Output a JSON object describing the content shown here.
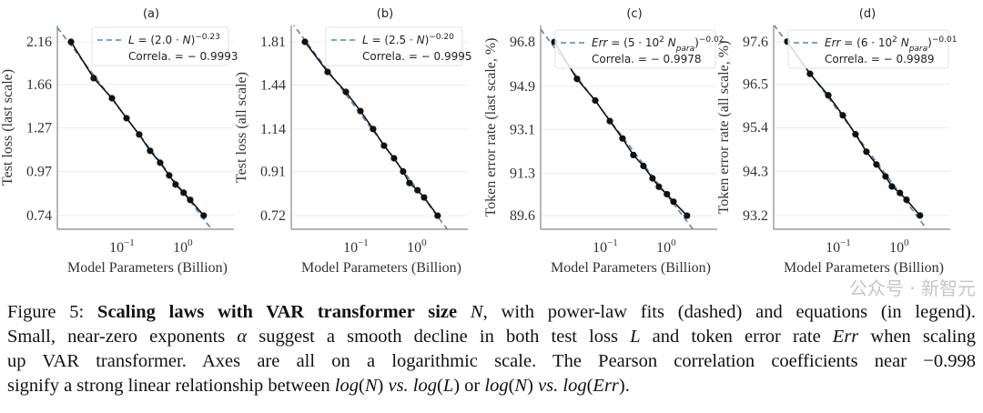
{
  "colors": {
    "fit": "#4f87b8",
    "data": "#111111",
    "grid": "#ececec",
    "axis": "#888888"
  },
  "chart_data": [
    {
      "type": "line",
      "title": "(a)",
      "xlabel": "Model Parameters (Billion)",
      "ylabel": "Test loss (last scale)",
      "xscale": "log",
      "yscale": "log",
      "xlim": [
        0.0087,
        6.9
      ],
      "ylim": [
        0.68,
        2.39
      ],
      "xticks": [
        {
          "value": 0.1,
          "base": "10",
          "exp": "−1"
        },
        {
          "value": 1,
          "base": "10",
          "exp": "0"
        }
      ],
      "yticks": [
        "2.16",
        "1.66",
        "1.27",
        "0.97",
        "0.74"
      ],
      "x": [
        0.0146,
        0.0344,
        0.0686,
        0.119,
        0.192,
        0.29,
        0.424,
        0.597,
        0.76,
        1.03,
        1.32,
        2.2
      ],
      "y": [
        2.16,
        1.727,
        1.526,
        1.349,
        1.22,
        1.103,
        1.025,
        0.948,
        0.896,
        0.852,
        0.815,
        0.74
      ],
      "legend": {
        "position": "top-right",
        "fit": [
          {
            "t": "L",
            "s": "i"
          },
          {
            "t": " = (2.0 · ",
            "s": "n"
          },
          {
            "t": "N",
            "s": "i"
          },
          {
            "t": ")",
            "s": "n"
          },
          {
            "t": "−0.23",
            "s": "sup"
          }
        ],
        "correlation": "Correla. = − 0.9993"
      }
    },
    {
      "type": "line",
      "title": "(b)",
      "xlabel": "Model Parameters (Billion)",
      "ylabel": "Test loss (all scale)",
      "xscale": "log",
      "yscale": "log",
      "xlim": [
        0.0087,
        6.9
      ],
      "ylim": [
        0.67,
        1.974
      ],
      "xticks": [
        {
          "value": 0.1,
          "base": "10",
          "exp": "−1"
        },
        {
          "value": 1,
          "base": "10",
          "exp": "0"
        }
      ],
      "yticks": [
        "1.81",
        "1.44",
        "1.14",
        "0.91",
        "0.72"
      ],
      "x": [
        0.0146,
        0.0344,
        0.0686,
        0.119,
        0.192,
        0.29,
        0.424,
        0.597,
        0.76,
        1.03,
        1.32,
        2.2
      ],
      "y": [
        1.81,
        1.543,
        1.388,
        1.254,
        1.14,
        1.044,
        0.976,
        0.91,
        0.856,
        0.824,
        0.793,
        0.72
      ],
      "legend": {
        "position": "top-right",
        "fit": [
          {
            "t": "L",
            "s": "i"
          },
          {
            "t": " = (2.5 · ",
            "s": "n"
          },
          {
            "t": "N",
            "s": "i"
          },
          {
            "t": ")",
            "s": "n"
          },
          {
            "t": "−0.20",
            "s": "sup"
          }
        ],
        "correlation": "Correla. = − 0.9995"
      }
    },
    {
      "type": "line",
      "title": "(c)",
      "xlabel": "Model Parameters (Billion)",
      "ylabel": "Token error rate (last scale, %)",
      "xscale": "log",
      "yscale": "log",
      "xlim": [
        0.0087,
        6.9
      ],
      "ylim": [
        89.06,
        97.51
      ],
      "xticks": [
        {
          "value": 0.1,
          "base": "10",
          "exp": "−1"
        },
        {
          "value": 1,
          "base": "10",
          "exp": "0"
        }
      ],
      "yticks": [
        "96.8",
        "94.9",
        "93.1",
        "91.3",
        "89.6"
      ],
      "x": [
        0.0146,
        0.0344,
        0.0686,
        0.119,
        0.192,
        0.29,
        0.424,
        0.597,
        0.76,
        1.03,
        1.32,
        2.2
      ],
      "y": [
        96.8,
        95.22,
        94.31,
        93.45,
        92.73,
        92.05,
        91.6,
        91.1,
        90.76,
        90.46,
        90.16,
        89.6
      ],
      "legend": {
        "position": "top-right",
        "fit": [
          {
            "t": "Err",
            "s": "i"
          },
          {
            "t": " = (5 · 10",
            "s": "n"
          },
          {
            "t": "2",
            "s": "sup"
          },
          {
            "t": " N",
            "s": "i"
          },
          {
            "t": "para",
            "s": "sub"
          },
          {
            "t": ")",
            "s": "n"
          },
          {
            "t": "−0.02",
            "s": "sup"
          }
        ],
        "correlation": "Correla. = − 0.9978"
      }
    },
    {
      "type": "line",
      "title": "(d)",
      "xlabel": "Model Parameters (Billion)",
      "ylabel": "Token error rate (all scale, %)",
      "xscale": "log",
      "yscale": "log",
      "xlim": [
        0.0087,
        6.9
      ],
      "ylim": [
        92.86,
        98.02
      ],
      "xticks": [
        {
          "value": 0.1,
          "base": "10",
          "exp": "−1"
        },
        {
          "value": 1,
          "base": "10",
          "exp": "0"
        }
      ],
      "yticks": [
        "97.6",
        "96.5",
        "95.4",
        "94.3",
        "93.2"
      ],
      "x": [
        0.0146,
        0.0344,
        0.0686,
        0.119,
        0.192,
        0.29,
        0.424,
        0.597,
        0.76,
        1.03,
        1.32,
        2.2
      ],
      "y": [
        97.6,
        96.77,
        96.22,
        95.71,
        95.23,
        94.79,
        94.47,
        94.17,
        93.92,
        93.76,
        93.59,
        93.2
      ],
      "legend": {
        "position": "top-right",
        "fit": [
          {
            "t": "Err",
            "s": "i"
          },
          {
            "t": " = (6 · 10",
            "s": "n"
          },
          {
            "t": "2",
            "s": "sup"
          },
          {
            "t": " N",
            "s": "i"
          },
          {
            "t": "para",
            "s": "sub"
          },
          {
            "t": ")",
            "s": "n"
          },
          {
            "t": "−0.01",
            "s": "sup"
          }
        ],
        "correlation": "Correla. = − 0.9989"
      }
    }
  ],
  "caption": {
    "lines": [
      [
        {
          "t": "Figure 5: ",
          "s": "n"
        },
        {
          "t": "Scaling laws with VAR transformer size",
          "s": "b"
        },
        {
          "t": " N",
          "s": "i"
        },
        {
          "t": ", with power-law fits (dashed) and equations (in legend).",
          "s": "n"
        }
      ],
      [
        {
          "t": "Small, near-zero exponents ",
          "s": "n"
        },
        {
          "t": "α",
          "s": "i"
        },
        {
          "t": " suggest a smooth decline in both test loss ",
          "s": "n"
        },
        {
          "t": "L",
          "s": "i"
        },
        {
          "t": " and token error rate ",
          "s": "n"
        },
        {
          "t": "Err",
          "s": "i"
        },
        {
          "t": " when scaling",
          "s": "n"
        }
      ],
      [
        {
          "t": "up VAR transformer.  Axes are all on a logarithmic scale.  The Pearson correlation coefficients near −0.998",
          "s": "n"
        }
      ],
      [
        {
          "t": "signify a strong linear relationship between ",
          "s": "n"
        },
        {
          "t": "log",
          "s": "i"
        },
        {
          "t": "(",
          "s": "n"
        },
        {
          "t": "N",
          "s": "i"
        },
        {
          "t": ") ",
          "s": "n"
        },
        {
          "t": "vs.",
          "s": "i"
        },
        {
          "t": " ",
          "s": "n"
        },
        {
          "t": "log",
          "s": "i"
        },
        {
          "t": "(",
          "s": "n"
        },
        {
          "t": "L",
          "s": "i"
        },
        {
          "t": ") or ",
          "s": "n"
        },
        {
          "t": "log",
          "s": "i"
        },
        {
          "t": "(",
          "s": "n"
        },
        {
          "t": "N",
          "s": "i"
        },
        {
          "t": ") ",
          "s": "n"
        },
        {
          "t": "vs.",
          "s": "i"
        },
        {
          "t": " ",
          "s": "n"
        },
        {
          "t": "log",
          "s": "i"
        },
        {
          "t": "(",
          "s": "n"
        },
        {
          "t": "Err",
          "s": "i"
        },
        {
          "t": ").",
          "s": "n"
        }
      ]
    ]
  },
  "watermark": "公众号 · 新智元"
}
